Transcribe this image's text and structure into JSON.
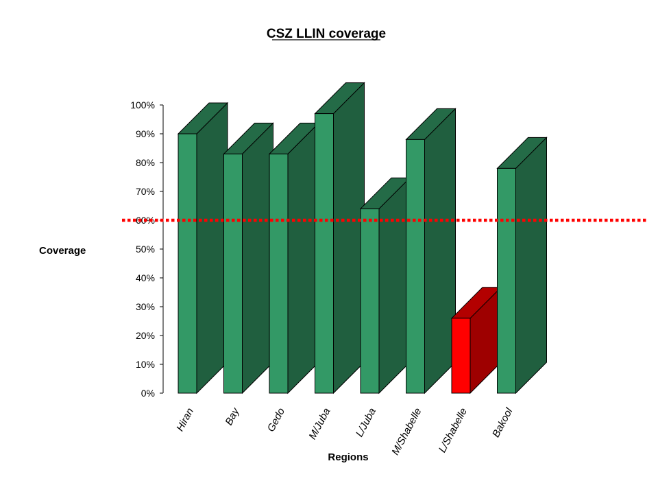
{
  "chart_data": {
    "type": "bar",
    "title": "CSZ LLIN coverage",
    "xlabel": "Regions",
    "ylabel": "Coverage",
    "categories": [
      "Hiran",
      "Bay",
      "Gedo",
      "M/Juba",
      "L/Juba",
      "M/Shabelle",
      "L/Shabelle",
      "Bakool"
    ],
    "values": [
      90,
      83,
      83,
      97,
      64,
      88,
      26,
      78
    ],
    "bar_colors": [
      "#339966",
      "#339966",
      "#339966",
      "#339966",
      "#339966",
      "#339966",
      "#ff0000",
      "#339966"
    ],
    "ylim": [
      0,
      100
    ],
    "yticks": [
      "0%",
      "10%",
      "20%",
      "30%",
      "40%",
      "50%",
      "60%",
      "70%",
      "80%",
      "90%",
      "100%"
    ],
    "threshold": 60,
    "threshold_color": "#ff0000",
    "grid": false,
    "legend": "none"
  }
}
